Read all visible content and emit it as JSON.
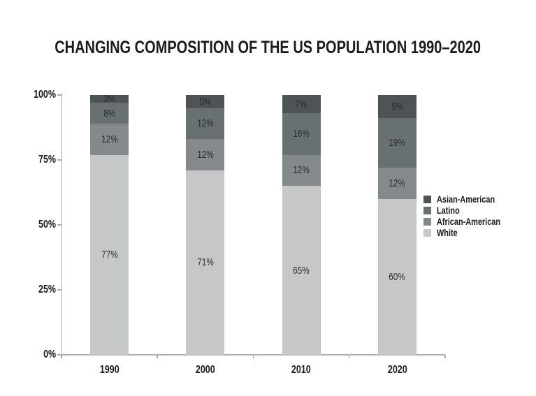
{
  "page": {
    "background": "#ffffff"
  },
  "chart_data": {
    "type": "bar",
    "stacked": true,
    "title": "CHANGING COMPOSITION OF THE US POPULATION 1990–2020",
    "categories": [
      "1990",
      "2000",
      "2010",
      "2020"
    ],
    "series": [
      {
        "name": "White",
        "color": "#c6c8c7",
        "values": [
          77,
          71,
          65,
          60
        ]
      },
      {
        "name": "African-American",
        "color": "#84898b",
        "values": [
          12,
          12,
          12,
          12
        ]
      },
      {
        "name": "Latino",
        "color": "#697072",
        "values": [
          8,
          12,
          16,
          19
        ]
      },
      {
        "name": "Asian-American",
        "color": "#4e5355",
        "values": [
          3,
          5,
          7,
          9
        ]
      }
    ],
    "value_label_format": "{value}%",
    "y_axis": {
      "min": 0,
      "max": 100,
      "ticks": [
        "0%",
        "25%",
        "50%",
        "75%",
        "100%"
      ]
    },
    "x_axis": {
      "ticks": [
        "1990",
        "2000",
        "2010",
        "2020"
      ]
    },
    "legend": {
      "position": "right",
      "order": [
        "Asian-American",
        "Latino",
        "African-American",
        "White"
      ]
    },
    "grid": false,
    "colors": {
      "axis": "#a9adad",
      "title_text": "#1b1b1b",
      "axis_text": "#1b1b1b",
      "bar_label_text": "#2b2b2b"
    }
  }
}
